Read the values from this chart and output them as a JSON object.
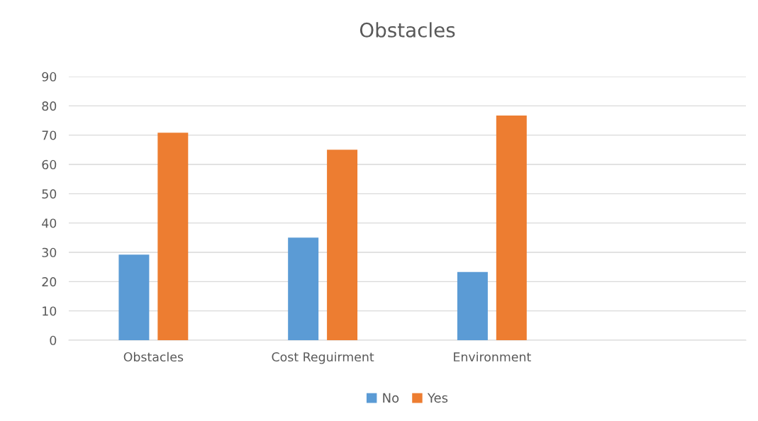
{
  "chart_data": {
    "type": "bar",
    "title": "Obstacles",
    "categories": [
      "Obstacles",
      "Cost Reguirment",
      "Environment",
      null
    ],
    "series": [
      {
        "name": "No",
        "color": "#5b9bd5",
        "values": [
          29.2,
          35,
          23.3,
          null
        ]
      },
      {
        "name": "Yes",
        "color": "#ed7d31",
        "values": [
          70.8,
          65,
          76.7,
          null
        ]
      }
    ],
    "ylim": [
      0,
      90
    ],
    "yticks": [
      0,
      10,
      20,
      30,
      40,
      50,
      60,
      70,
      80,
      90
    ],
    "grid": "y",
    "legend": "bottom"
  }
}
